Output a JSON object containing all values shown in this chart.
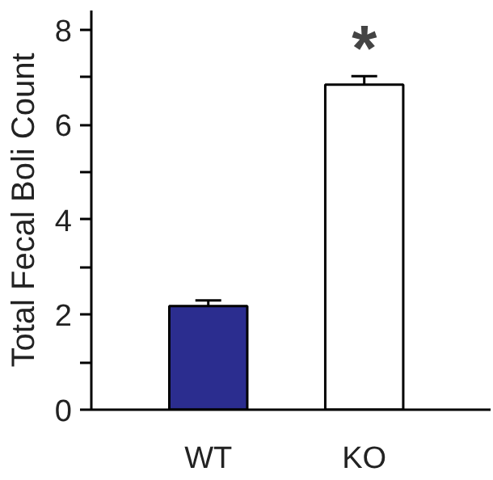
{
  "chart_data": {
    "type": "bar",
    "ylabel": "Total Fecal Boli Count",
    "categories": [
      "WT",
      "KO"
    ],
    "values": [
      2.18,
      6.84
    ],
    "errors": [
      0.12,
      0.18
    ],
    "colors": [
      "#2b2d8f",
      "#ffffff"
    ],
    "ylim": [
      0,
      8.4
    ],
    "yticks": [
      0,
      {
        "value": 1,
        "label": null
      },
      2,
      {
        "value": 3,
        "label": null
      },
      4,
      {
        "value": 5,
        "label": null
      },
      6,
      {
        "value": 7,
        "label": null
      },
      8
    ],
    "annotations": [
      "*"
    ],
    "grid": false
  }
}
